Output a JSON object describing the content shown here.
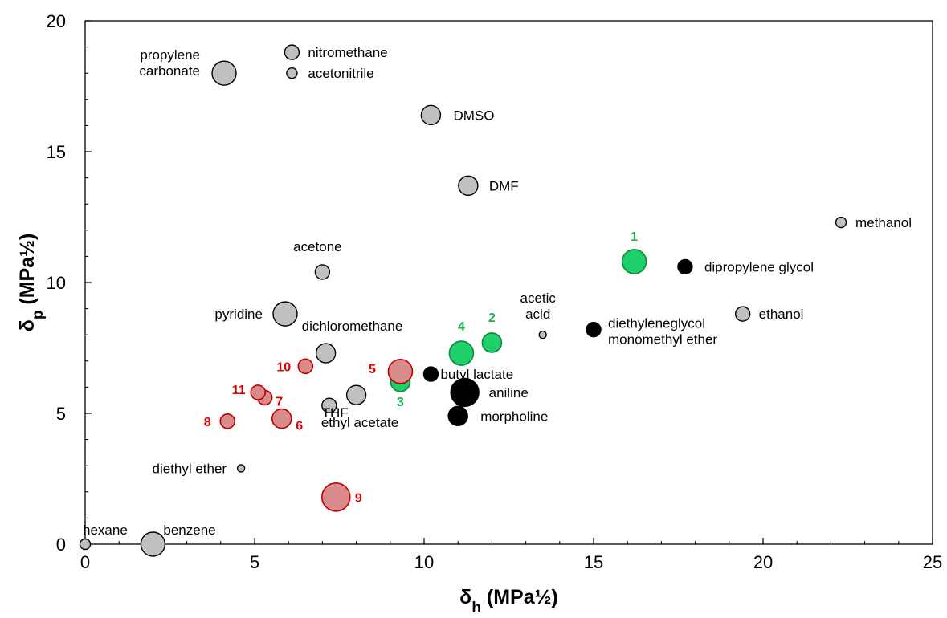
{
  "chart_data": {
    "type": "scatter",
    "xlabel": "δh (MPa½)",
    "ylabel": "δp (MPa½)",
    "xlim": [
      0,
      25
    ],
    "ylim": [
      0,
      20
    ],
    "x_ticks": [
      "0",
      "5",
      "10",
      "15",
      "20",
      "25"
    ],
    "y_ticks": [
      "0",
      "5",
      "10",
      "15",
      "20"
    ],
    "grid": false,
    "legend": "none",
    "colors": {
      "gray_fill": "#c0c0c0",
      "black_fill": "#000000",
      "green_fill": "#1fcf6a",
      "green_stroke": "#0b8a3a",
      "green_label": "#20b050",
      "red_fill": "#d98a8a",
      "red_stroke": "#c00000",
      "red_label": "#e00000"
    },
    "series": [
      {
        "group": "gray",
        "points": [
          {
            "label": "propylene\ncarbonate",
            "x": 4.1,
            "y": 18.0,
            "size": 3
          },
          {
            "label": "nitromethane",
            "x": 6.1,
            "y": 18.8,
            "size": 1
          },
          {
            "label": "acetonitrile",
            "x": 6.1,
            "y": 18.0,
            "size": 0
          },
          {
            "label": "DMSO",
            "x": 10.2,
            "y": 16.4,
            "size": 2
          },
          {
            "label": "DMF",
            "x": 11.3,
            "y": 13.7,
            "size": 2
          },
          {
            "label": "methanol",
            "x": 22.3,
            "y": 12.3,
            "size": 0
          },
          {
            "label": "acetone",
            "x": 7.0,
            "y": 10.4,
            "size": 1
          },
          {
            "label": "pyridine",
            "x": 5.9,
            "y": 8.8,
            "size": 3
          },
          {
            "label": "ethanol",
            "x": 19.4,
            "y": 8.8,
            "size": 1
          },
          {
            "label": "acetic\nacid",
            "x": 13.5,
            "y": 8.0,
            "size": -1
          },
          {
            "label": "dichloromethane",
            "x": 7.1,
            "y": 7.3,
            "size": 2
          },
          {
            "label": "THF",
            "x": 8.0,
            "y": 5.7,
            "size": 2
          },
          {
            "label": "ethyl acetate",
            "x": 7.2,
            "y": 5.3,
            "size": 1
          },
          {
            "label": "diethyl ether",
            "x": 4.6,
            "y": 2.9,
            "size": -1
          },
          {
            "label": "hexane",
            "x": 0.0,
            "y": 0.0,
            "size": 0
          },
          {
            "label": "benzene",
            "x": 2.0,
            "y": 0.0,
            "size": 3
          }
        ]
      },
      {
        "group": "black",
        "points": [
          {
            "label": "dipropylene glycol",
            "x": 17.7,
            "y": 10.6,
            "size": 1
          },
          {
            "label": "diethyleneglycol\nmonomethyl ether",
            "x": 15.0,
            "y": 8.2,
            "size": 1
          },
          {
            "label": "butyl lactate",
            "x": 10.2,
            "y": 6.5,
            "size": 1
          },
          {
            "label": "aniline",
            "x": 11.2,
            "y": 5.8,
            "size": 4
          },
          {
            "label": "morpholine",
            "x": 11.0,
            "y": 4.9,
            "size": 2
          }
        ]
      },
      {
        "group": "green",
        "points": [
          {
            "label": "1",
            "x": 16.2,
            "y": 10.8,
            "size": 3
          },
          {
            "label": "2",
            "x": 12.0,
            "y": 7.7,
            "size": 2
          },
          {
            "label": "3",
            "x": 9.3,
            "y": 6.2,
            "size": 2
          },
          {
            "label": "4",
            "x": 11.1,
            "y": 7.3,
            "size": 3
          }
        ]
      },
      {
        "group": "red",
        "points": [
          {
            "label": "5",
            "x": 9.3,
            "y": 6.6,
            "size": 3
          },
          {
            "label": "6",
            "x": 5.8,
            "y": 4.8,
            "size": 2
          },
          {
            "label": "7",
            "x": 5.3,
            "y": 5.6,
            "size": 1
          },
          {
            "label": "8",
            "x": 4.2,
            "y": 4.7,
            "size": 1
          },
          {
            "label": "9",
            "x": 7.4,
            "y": 1.8,
            "size": 4
          },
          {
            "label": "10",
            "x": 6.5,
            "y": 6.8,
            "size": 1
          },
          {
            "label": "11",
            "x": 5.1,
            "y": 5.8,
            "size": 1
          }
        ]
      }
    ]
  }
}
